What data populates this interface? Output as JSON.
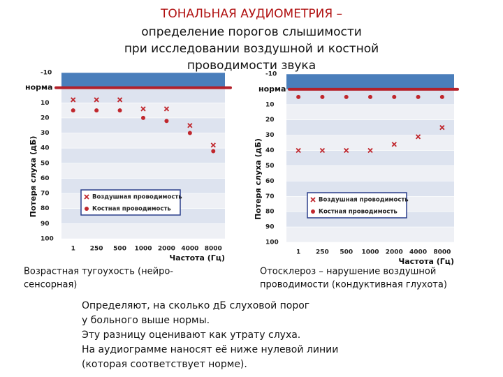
{
  "header": {
    "title": "ТОНАЛЬНАЯ АУДИОМЕТРИЯ –",
    "subtitle_lines": [
      "определение порогов слышимости",
      "при исследовании воздушной и костной",
      "проводимости звука"
    ]
  },
  "chart_data": [
    {
      "type": "scatter",
      "caption_lines": [
        "Возрастная тугоухость (нейро-",
        "сенсорная)"
      ],
      "x_label": "Частота (Гц)",
      "y_label": "Потеря слуха (дБ)",
      "categories": [
        "1",
        "250",
        "500",
        "1000",
        "2000",
        "4000",
        "8000"
      ],
      "ylim": [
        -10,
        100
      ],
      "yticks": [
        -10,
        {
          "value": 0,
          "label": "норма"
        },
        10,
        20,
        30,
        40,
        50,
        60,
        70,
        80,
        90,
        100
      ],
      "series": [
        {
          "name": "Воздушная проводимость",
          "marker": "x",
          "color": "#c0272d",
          "values": [
            8,
            8,
            8,
            14,
            14,
            25,
            38
          ]
        },
        {
          "name": "Костная проводимость",
          "marker": "o",
          "color": "#c0272d",
          "values": [
            15,
            15,
            15,
            20,
            22,
            30,
            42
          ]
        }
      ]
    },
    {
      "type": "scatter",
      "caption_lines": [
        "Отосклероз – нарушение воздушной",
        "проводимости  (кондуктивная глухота)"
      ],
      "x_label": "Частота (Гц)",
      "y_label": "Потеря слуха (дБ)",
      "categories": [
        "1",
        "250",
        "500",
        "1000",
        "2000",
        "4000",
        "8000"
      ],
      "ylim": [
        -10,
        100
      ],
      "yticks": [
        -10,
        {
          "value": 0,
          "label": "норма"
        },
        10,
        20,
        30,
        40,
        50,
        60,
        70,
        80,
        90,
        100
      ],
      "series": [
        {
          "name": "Воздушная проводимость",
          "marker": "x",
          "color": "#c0272d",
          "values": [
            40,
            40,
            40,
            40,
            36,
            31,
            25
          ]
        },
        {
          "name": "Костная проводимость",
          "marker": "o",
          "color": "#c0272d",
          "values": [
            5,
            5,
            5,
            5,
            5,
            5,
            5
          ]
        }
      ]
    }
  ],
  "body_lines": [
    "Определяют, на сколько дБ слуховой порог",
    "у больного выше нормы.",
    "Эту разницу оценивают как утрату слуха.",
    "На аудиограмме наносят её ниже нулевой линии",
    "(которая соответствует норме)."
  ]
}
